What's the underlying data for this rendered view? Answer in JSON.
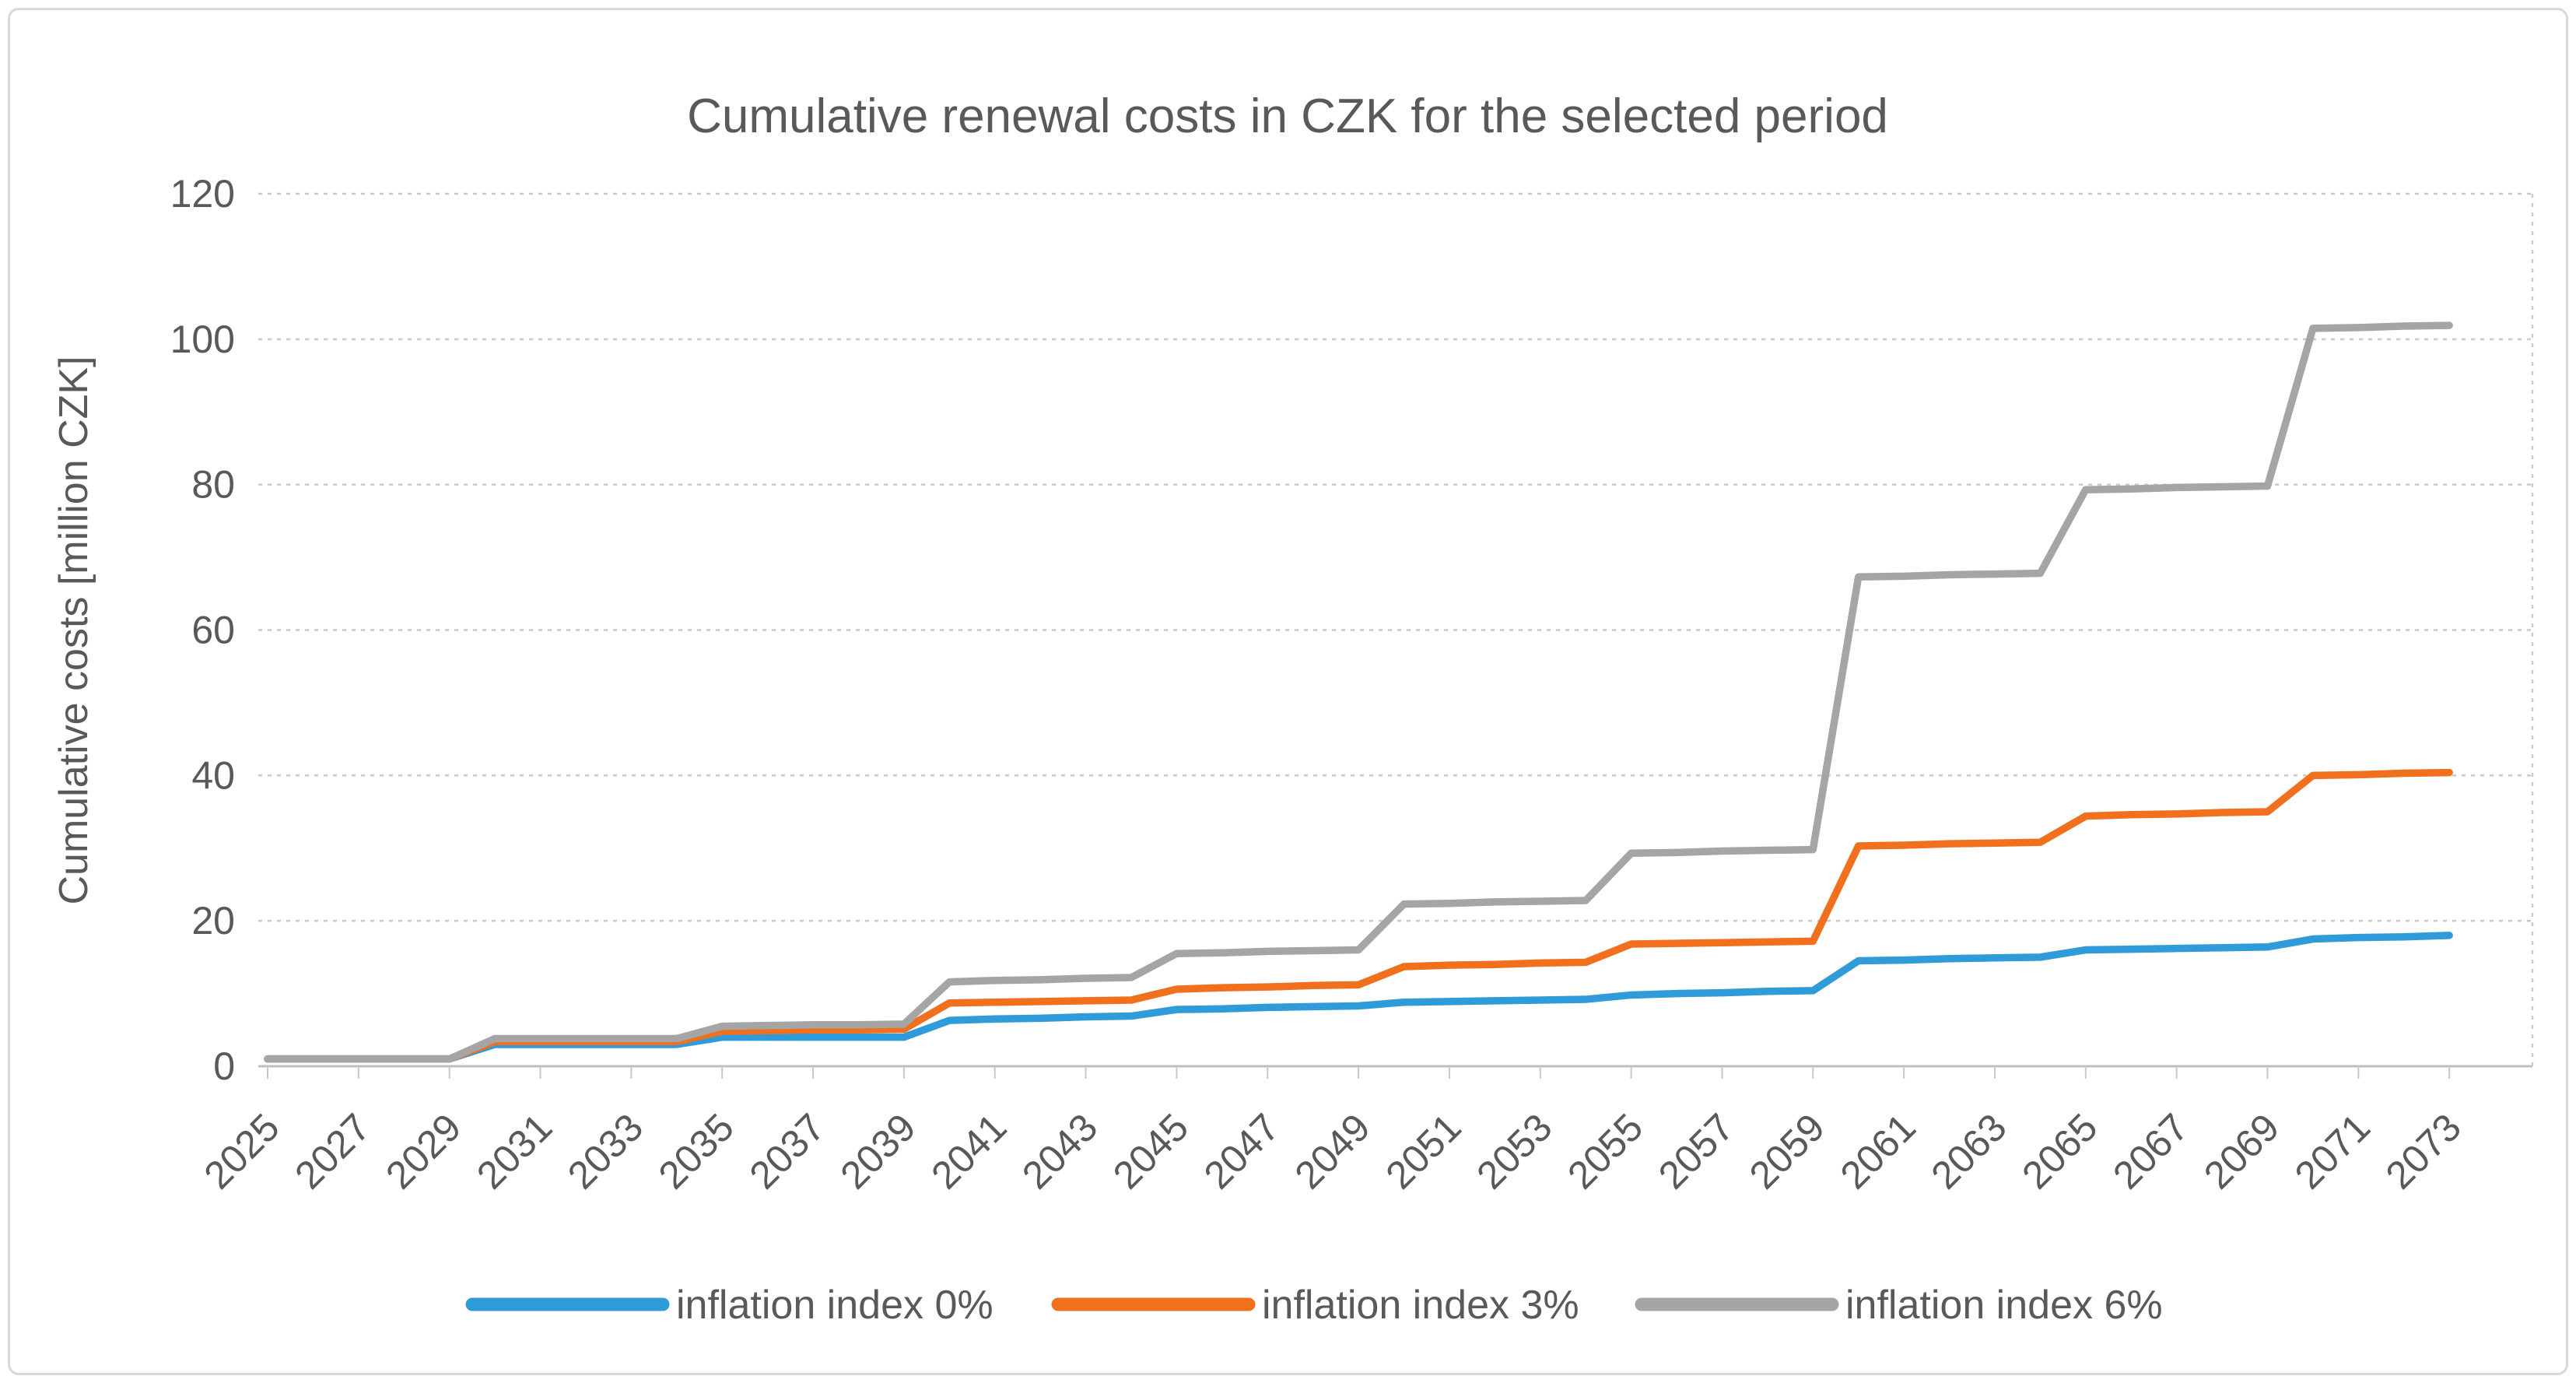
{
  "frame": {
    "border_color": "#D9D9D9",
    "background": "#FFFFFF"
  },
  "chart_data": {
    "type": "line",
    "title": "Cumulative renewal costs in CZK for the selected period",
    "xlabel": "",
    "ylabel": "Cumulative costs [million CZK]",
    "ylim": [
      0,
      120
    ],
    "y_ticks": [
      0,
      20,
      40,
      60,
      80,
      100,
      120
    ],
    "grid": "horizontal-dashed-light-gray",
    "legend_position": "bottom-center",
    "text_color": "#595959",
    "x": [
      2025,
      2026,
      2027,
      2028,
      2029,
      2030,
      2031,
      2032,
      2033,
      2034,
      2035,
      2036,
      2037,
      2038,
      2039,
      2040,
      2041,
      2042,
      2043,
      2044,
      2045,
      2046,
      2047,
      2048,
      2049,
      2050,
      2051,
      2052,
      2053,
      2054,
      2055,
      2056,
      2057,
      2058,
      2059,
      2060,
      2061,
      2062,
      2063,
      2064,
      2065,
      2066,
      2067,
      2068,
      2069,
      2070,
      2071,
      2072,
      2073
    ],
    "x_tick_labels": [
      "2025",
      "2027",
      "2029",
      "2031",
      "2033",
      "2035",
      "2037",
      "2039",
      "2041",
      "2043",
      "2045",
      "2047",
      "2049",
      "2051",
      "2053",
      "2055",
      "2057",
      "2059",
      "2061",
      "2063",
      "2065",
      "2067",
      "2069",
      "2071",
      "2073"
    ],
    "series": [
      {
        "name": "inflation index 0%",
        "color": "#2F9BD8",
        "values": [
          1,
          1,
          1,
          1,
          1,
          3,
          3,
          3,
          3,
          3,
          4,
          4,
          4,
          4,
          4,
          6.3,
          6.5,
          6.6,
          6.8,
          6.9,
          7.8,
          7.9,
          8.1,
          8.2,
          8.3,
          8.8,
          8.9,
          9,
          9.1,
          9.2,
          9.8,
          10,
          10.1,
          10.3,
          10.4,
          14.5,
          14.6,
          14.8,
          14.9,
          15,
          16,
          16.1,
          16.2,
          16.3,
          16.4,
          17.5,
          17.7,
          17.8,
          18
        ]
      },
      {
        "name": "inflation index 3%",
        "color": "#F0701E",
        "values": [
          1,
          1,
          1,
          1,
          1,
          3.4,
          3.4,
          3.4,
          3.4,
          3.4,
          4.8,
          4.9,
          5,
          5,
          5.1,
          8.7,
          8.8,
          8.9,
          9,
          9.1,
          10.6,
          10.8,
          10.9,
          11.1,
          11.2,
          13.7,
          13.9,
          14,
          14.2,
          14.3,
          16.8,
          16.9,
          17,
          17.1,
          17.2,
          30.3,
          30.4,
          30.6,
          30.7,
          30.8,
          34.4,
          34.6,
          34.7,
          34.9,
          35,
          40,
          40.1,
          40.3,
          40.4
        ]
      },
      {
        "name": "inflation index 6%",
        "color": "#A5A5A5",
        "values": [
          1,
          1,
          1,
          1,
          1,
          3.8,
          3.8,
          3.8,
          3.8,
          3.8,
          5.5,
          5.6,
          5.7,
          5.7,
          5.8,
          11.6,
          11.8,
          11.9,
          12.1,
          12.2,
          15.5,
          15.6,
          15.8,
          15.9,
          16,
          22.3,
          22.4,
          22.6,
          22.7,
          22.8,
          29.3,
          29.4,
          29.6,
          29.7,
          29.8,
          67.3,
          67.4,
          67.6,
          67.7,
          67.8,
          79.3,
          79.4,
          79.6,
          79.7,
          79.8,
          101.5,
          101.6,
          101.8,
          101.9
        ]
      }
    ]
  }
}
